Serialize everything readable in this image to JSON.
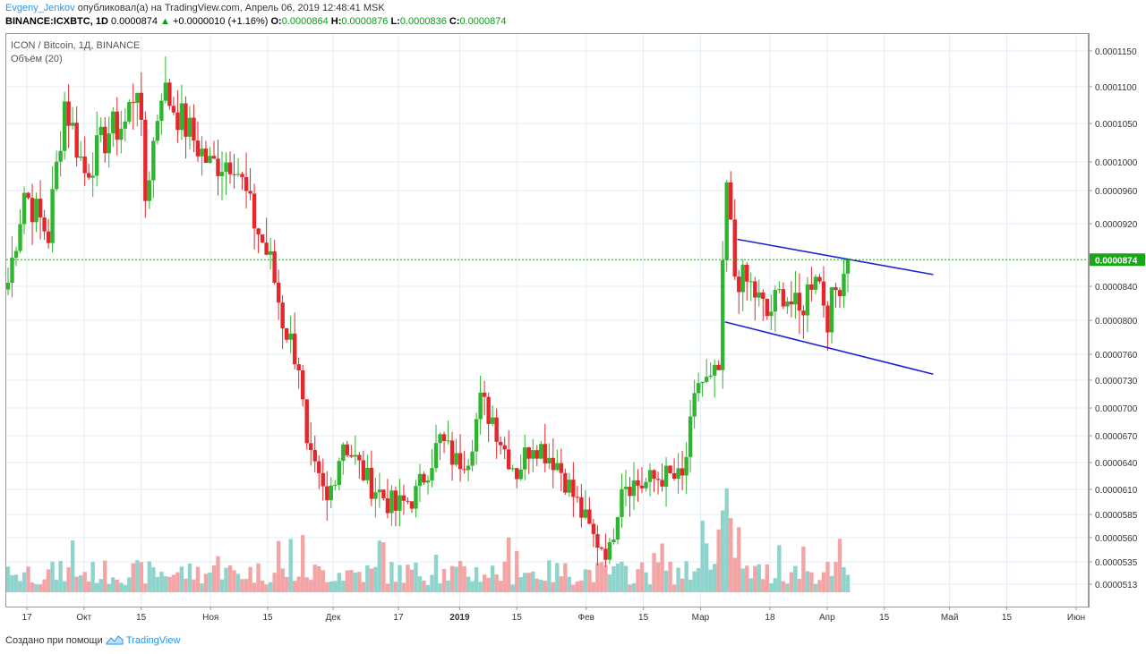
{
  "header": {
    "author": "Evgeny_Jenkov",
    "published_text": "опубликовал(а) на TradingView.com, Апрель 06, 2019 12:48:41 MSK",
    "symbol": "BINANCE:ICXBTC, 1D",
    "last": "0.0000874",
    "change": "+0.0000010 (+1.16%)",
    "o_label": "O:",
    "o_value": "0.0000864",
    "h_label": "H:",
    "h_value": "0.0000876",
    "l_label": "L:",
    "l_value": "0.0000836",
    "c_label": "C:",
    "c_value": "0.0000874"
  },
  "footer": {
    "created_with": "Создано при помощи",
    "brand": "TradingView"
  },
  "colors": {
    "up": "#2fb52f",
    "down": "#e5262b",
    "vol_up": "#8fd3cd",
    "vol_down": "#f3a5a5",
    "trend": "#1f24d6",
    "last_price": "#1aa61a",
    "grid": "#e3edf5"
  },
  "chart_data": {
    "type": "candlestick",
    "title": "ICON / Bitcoin, 1Д, BINANCE",
    "subtitle": "Объём (20)",
    "last_price_label": "0.0000874",
    "y_ticks": [
      "0.0001150",
      "0.0001100",
      "0.0001050",
      "0.0001000",
      "0.0000960",
      "0.0000920",
      "0.0000840",
      "0.0000800",
      "0.0000760",
      "0.0000730",
      "0.0000700",
      "0.0000670",
      "0.0000640",
      "0.0000610",
      "0.0000585",
      "0.0000560",
      "0.0000535",
      "0.0000513"
    ],
    "y_tick_values": [
      0.000115,
      0.00011,
      0.000105,
      0.0001,
      9.6e-05,
      9.2e-05,
      8.4e-05,
      8e-05,
      7.6e-05,
      7.3e-05,
      7e-05,
      6.7e-05,
      6.4e-05,
      6.1e-05,
      5.85e-05,
      5.6e-05,
      5.35e-05,
      5.13e-05
    ],
    "x_ticks": [
      {
        "label": "17",
        "date": "2018-09-17"
      },
      {
        "label": "Окт",
        "date": "2018-10-01"
      },
      {
        "label": "15",
        "date": "2018-10-15"
      },
      {
        "label": "Ноя",
        "date": "2018-11-01"
      },
      {
        "label": "15",
        "date": "2018-11-15"
      },
      {
        "label": "Дек",
        "date": "2018-12-01"
      },
      {
        "label": "17",
        "date": "2018-12-17"
      },
      {
        "label": "2019",
        "date": "2019-01-01"
      },
      {
        "label": "15",
        "date": "2019-01-15"
      },
      {
        "label": "Фев",
        "date": "2019-02-01"
      },
      {
        "label": "15",
        "date": "2019-02-15"
      },
      {
        "label": "Мар",
        "date": "2019-03-01"
      },
      {
        "label": "18",
        "date": "2019-03-18"
      },
      {
        "label": "Апр",
        "date": "2019-04-01"
      },
      {
        "label": "15",
        "date": "2019-04-15"
      },
      {
        "label": "Май",
        "date": "2019-05-01"
      },
      {
        "label": "15",
        "date": "2019-05-15"
      },
      {
        "label": "Июн",
        "date": "2019-06-01"
      }
    ],
    "start_date": "2018-09-10",
    "end_date": "2019-04-06",
    "close_path": [
      [
        "2018-09-10",
        8.45e-05
      ],
      [
        "2018-09-14",
        9.6e-05
      ],
      [
        "2018-09-20",
        9.05e-05
      ],
      [
        "2018-09-24",
        0.000108
      ],
      [
        "2018-09-29",
        9.85e-05
      ],
      [
        "2018-10-05",
        0.000104
      ],
      [
        "2018-10-09",
        0.000105
      ],
      [
        "2018-10-12",
        0.000111
      ],
      [
        "2018-10-14",
        9.5e-05
      ],
      [
        "2018-10-18",
        0.00011
      ],
      [
        "2018-10-23",
        0.0001055
      ],
      [
        "2018-10-30",
        9.95e-05
      ],
      [
        "2018-11-05",
        0.0001005
      ],
      [
        "2018-11-09",
        9.35e-05
      ],
      [
        "2018-11-14",
        8.7e-05
      ],
      [
        "2018-11-17",
        8e-05
      ],
      [
        "2018-11-21",
        7.5e-05
      ],
      [
        "2018-11-23",
        6.5e-05
      ],
      [
        "2018-11-28",
        5.95e-05
      ],
      [
        "2018-12-02",
        6.65e-05
      ],
      [
        "2018-12-08",
        6.2e-05
      ],
      [
        "2018-12-15",
        5.9e-05
      ],
      [
        "2018-12-20",
        6.05e-05
      ],
      [
        "2018-12-26",
        6.65e-05
      ],
      [
        "2018-12-30",
        6.4e-05
      ],
      [
        "2019-01-02",
        6.5e-05
      ],
      [
        "2019-01-05",
        7.05e-05
      ],
      [
        "2019-01-08",
        6.9e-05
      ],
      [
        "2019-01-11",
        6.55e-05
      ],
      [
        "2019-01-14",
        6.3e-05
      ],
      [
        "2019-01-18",
        6.65e-05
      ],
      [
        "2019-01-24",
        6.4e-05
      ],
      [
        "2019-01-29",
        5.95e-05
      ],
      [
        "2019-02-02",
        5.6e-05
      ],
      [
        "2019-02-06",
        5.45e-05
      ],
      [
        "2019-02-09",
        6.2e-05
      ],
      [
        "2019-02-14",
        6.15e-05
      ],
      [
        "2019-02-19",
        6.25e-05
      ],
      [
        "2019-02-24",
        6.2e-05
      ],
      [
        "2019-02-28",
        7.3e-05
      ],
      [
        "2019-03-03",
        7.25e-05
      ],
      [
        "2019-03-05",
        7.4e-05
      ],
      [
        "2019-03-07",
        9.65e-05
      ],
      [
        "2019-03-09",
        8.55e-05
      ],
      [
        "2019-03-13",
        8.4e-05
      ],
      [
        "2019-03-17",
        8.05e-05
      ],
      [
        "2019-03-21",
        8.35e-05
      ],
      [
        "2019-03-25",
        8.05e-05
      ],
      [
        "2019-03-29",
        8.65e-05
      ],
      [
        "2019-04-01",
        8.05e-05
      ],
      [
        "2019-04-03",
        8.35e-05
      ],
      [
        "2019-04-06",
        8.74e-05
      ]
    ],
    "trendlines": [
      {
        "from": [
          "2019-03-10",
          9e-05
        ],
        "to": [
          "2019-04-27",
          8.55e-05
        ]
      },
      {
        "from": [
          "2019-03-07",
          7.98e-05
        ],
        "to": [
          "2019-04-27",
          7.37e-05
        ]
      }
    ],
    "volume_scale_max": 1
  }
}
